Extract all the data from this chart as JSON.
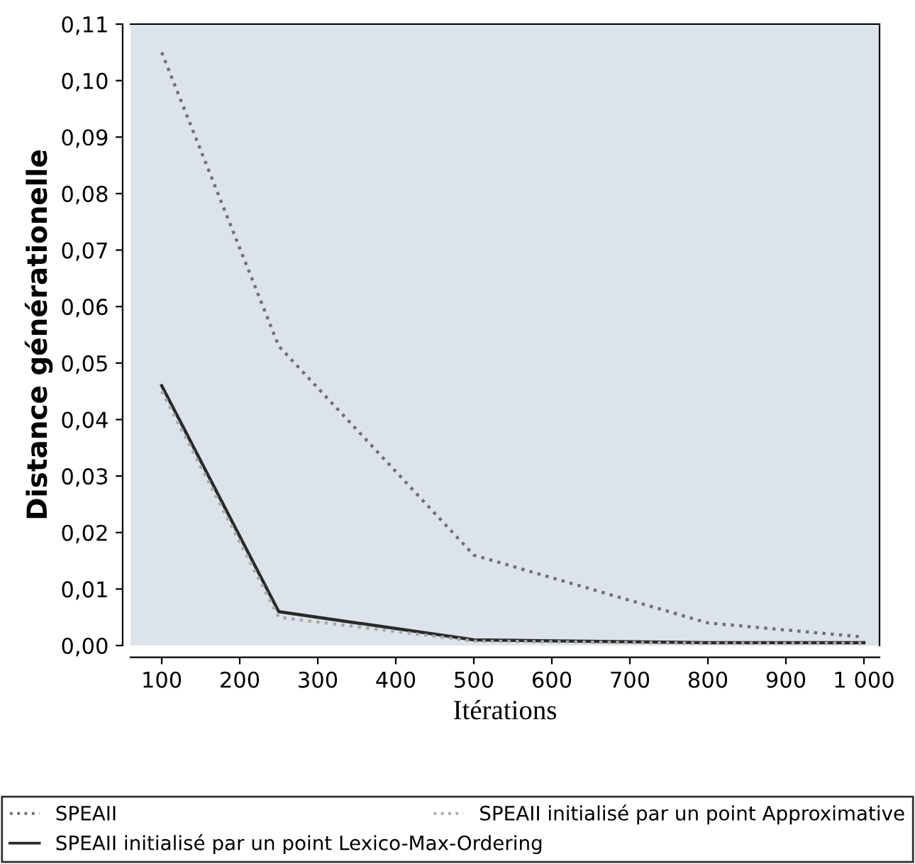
{
  "chart_data": {
    "type": "line",
    "xlabel": "Itérations",
    "ylabel": "Distance générationelle",
    "x": [
      100,
      250,
      500,
      800,
      1000
    ],
    "series": [
      {
        "name": "SPEAII",
        "color": "#707070",
        "line_style": "dotted",
        "values": [
          0.105,
          0.053,
          0.016,
          0.004,
          0.0015
        ]
      },
      {
        "name": "SPEAII initialisé par un point Lexico-Max-Ordering",
        "color": "#2a2a2a",
        "line_style": "solid",
        "values": [
          0.046,
          0.006,
          0.001,
          0.0005,
          0.0005
        ]
      },
      {
        "name": "SPEAII initialisé par un point Approximative",
        "color": "#a8a8a8",
        "line_style": "dotted",
        "values": [
          0.045,
          0.005,
          0.0008,
          0.0004,
          0.0004
        ]
      }
    ],
    "xlim": [
      60,
      1020
    ],
    "ylim": [
      0,
      0.11
    ],
    "xticks": [
      100,
      200,
      300,
      400,
      500,
      600,
      700,
      800,
      900,
      {
        "value": 1000,
        "label": "1 000"
      }
    ],
    "yticks": [
      {
        "value": 0,
        "label": "0,00"
      },
      {
        "value": 0.01,
        "label": "0,01"
      },
      {
        "value": 0.02,
        "label": "0,02"
      },
      {
        "value": 0.03,
        "label": "0,03"
      },
      {
        "value": 0.04,
        "label": "0,04"
      },
      {
        "value": 0.05,
        "label": "0,05"
      },
      {
        "value": 0.06,
        "label": "0,06"
      },
      {
        "value": 0.07,
        "label": "0,07"
      },
      {
        "value": 0.08,
        "label": "0,08"
      },
      {
        "value": 0.09,
        "label": "0,09"
      },
      {
        "value": 0.1,
        "label": "0,10"
      },
      {
        "value": 0.11,
        "label": "0,11"
      }
    ],
    "grid": false,
    "legend": "bottom",
    "marker": "none"
  }
}
